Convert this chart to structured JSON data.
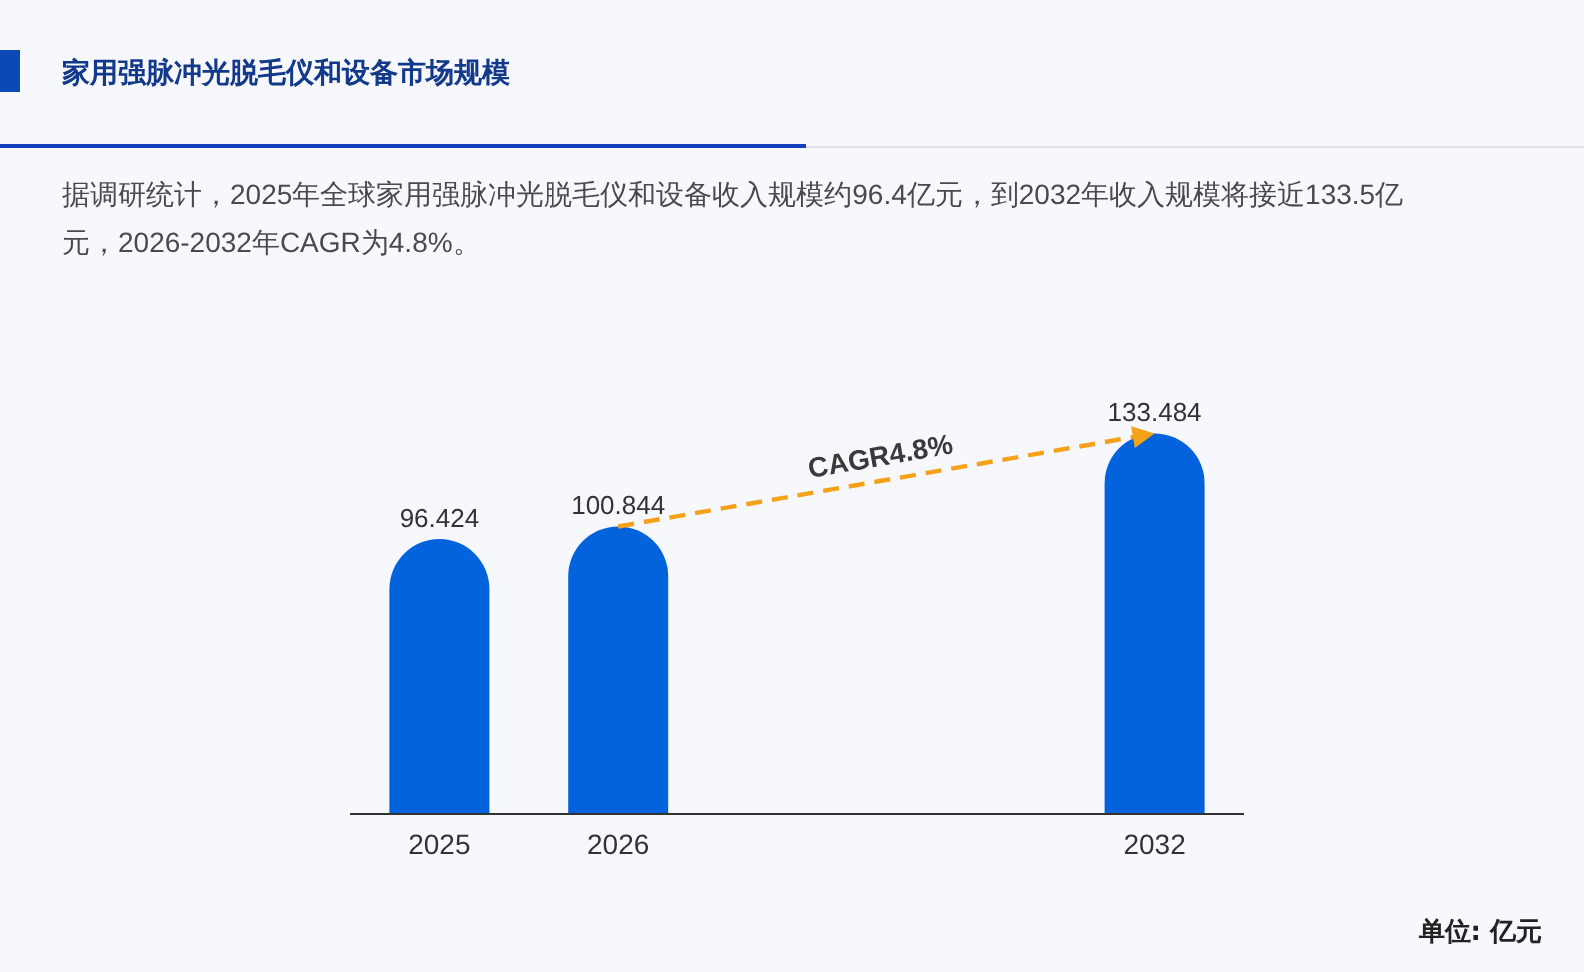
{
  "chart_data": {
    "type": "bar",
    "title": "家用强脉冲光脱毛仪和设备市场规模",
    "subtitle": "据调研统计，2025年全球家用强脉冲光脱毛仪和设备收入规模约96.4亿元，到2032年收入规模将接近133.5亿元，2026-2032年CAGR为4.8%。",
    "categories": [
      "2025",
      "2026",
      null,
      null,
      "2032"
    ],
    "values": [
      96.424,
      100.844,
      null,
      null,
      133.484
    ],
    "color": "#0363dd",
    "data_labels": true,
    "annotations": [
      "CAGR4.8%",
      "单位: 亿元"
    ]
  }
}
